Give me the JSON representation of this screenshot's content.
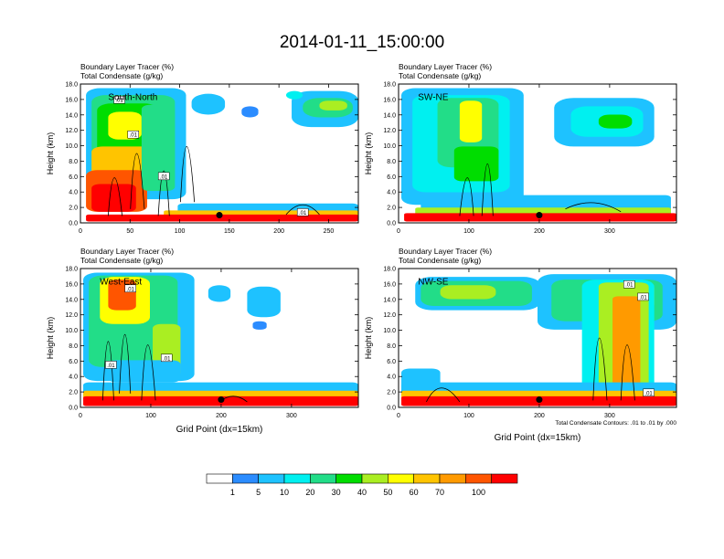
{
  "title": "2014-01-11_15:00:00",
  "chart_data": [
    {
      "type": "heatmap",
      "panel": "South-North",
      "title_line1": "Boundary Layer Tracer",
      "unit_line1": "(%)",
      "title_line2": "Total Condensate",
      "unit_line2": "(g/kg)",
      "ylabel": "Height (km)",
      "xlabel": "",
      "xlim": [
        0,
        280
      ],
      "ylim": [
        0,
        18
      ],
      "xticks": [
        "0",
        "50",
        "100",
        "150",
        "200",
        "250"
      ],
      "xtick_values": [
        0,
        50,
        100,
        150,
        200,
        250
      ],
      "yticks": [
        "0.0",
        "2.0",
        "4.0",
        "6.0",
        "8.0",
        "10.0",
        "12.0",
        "14.0",
        "16.0",
        "18.0"
      ],
      "contour_labels": [
        ".01",
        ".01",
        ".01",
        ".01"
      ],
      "marker_x": 140
    },
    {
      "type": "heatmap",
      "panel": "SW-NE",
      "title_line1": "Boundary Layer Tracer",
      "unit_line1": "(%)",
      "title_line2": "Total Condensate",
      "unit_line2": "(g/kg)",
      "ylabel": "Height (km)",
      "xlabel": "",
      "xlim": [
        0,
        395
      ],
      "ylim": [
        0,
        18
      ],
      "xticks": [
        "0",
        "100",
        "200",
        "300"
      ],
      "xtick_values": [
        0,
        100,
        200,
        300
      ],
      "yticks": [
        "0.0",
        "2.0",
        "4.0",
        "6.0",
        "8.0",
        "10.0",
        "12.0",
        "14.0",
        "16.0",
        "18.0"
      ],
      "contour_labels": [],
      "marker_x": 200
    },
    {
      "type": "heatmap",
      "panel": "West-East",
      "title_line1": "Boundary Layer Tracer",
      "unit_line1": "(%)",
      "title_line2": "Total Condensate",
      "unit_line2": "(g/kg)",
      "ylabel": "Height (km)",
      "xlabel": "Grid Point (dx=15km)",
      "xlim": [
        0,
        395
      ],
      "ylim": [
        0,
        18
      ],
      "xticks": [
        "0",
        "100",
        "200",
        "300"
      ],
      "xtick_values": [
        0,
        100,
        200,
        300
      ],
      "yticks": [
        "0.0",
        "2.0",
        "4.0",
        "6.0",
        "8.0",
        "10.0",
        "12.0",
        "14.0",
        "16.0",
        "18.0"
      ],
      "contour_labels": [
        ".01",
        ".01",
        ".01"
      ],
      "marker_x": 200
    },
    {
      "type": "heatmap",
      "panel": "NW-SE",
      "title_line1": "Boundary Layer Tracer",
      "unit_line1": "(%)",
      "title_line2": "Total Condensate",
      "unit_line2": "(g/kg)",
      "ylabel": "Height (km)",
      "xlabel": "Grid Point (dx=15km)",
      "xlim": [
        0,
        395
      ],
      "ylim": [
        0,
        18
      ],
      "xticks": [
        "0",
        "100",
        "200",
        "300"
      ],
      "xtick_values": [
        0,
        100,
        200,
        300
      ],
      "yticks": [
        "0.0",
        "2.0",
        "4.0",
        "6.0",
        "8.0",
        "10.0",
        "12.0",
        "14.0",
        "16.0",
        "18.0"
      ],
      "contour_labels": [
        ".01",
        ".01",
        ".01"
      ],
      "contour_note": "Total Condensate Contours: .01 to .01 by .000",
      "marker_x": 200
    }
  ],
  "colorbar": {
    "levels": [
      "1",
      "5",
      "10",
      "20",
      "30",
      "40",
      "50",
      "60",
      "70",
      "100"
    ],
    "colors": [
      "#ffffff",
      "#2b8cff",
      "#1ec2ff",
      "#00f0f0",
      "#22dd88",
      "#00dd00",
      "#aaee22",
      "#ffff00",
      "#ffc400",
      "#ff9a00",
      "#ff5500",
      "#ff0000"
    ]
  }
}
